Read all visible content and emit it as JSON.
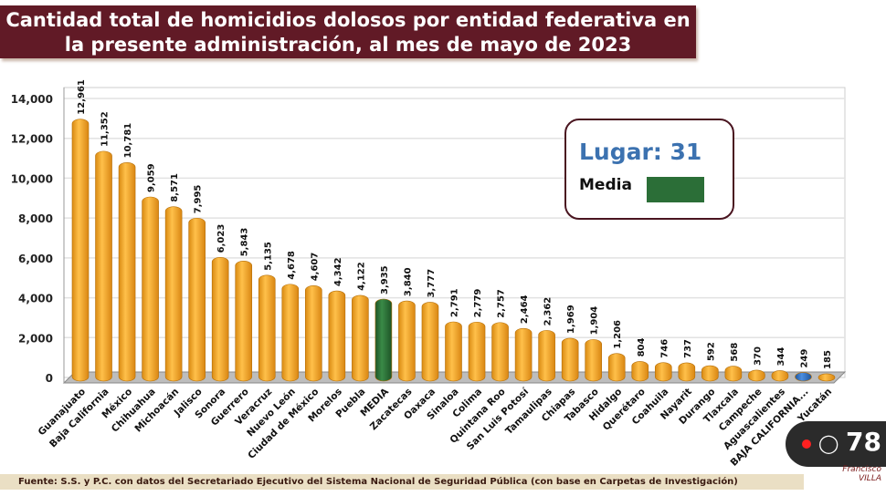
{
  "title": "Cantidad total de homicidios dolosos por entidad federativa en la presente administración, al mes de mayo de 2023",
  "legend": {
    "lugar": "Lugar: 31",
    "media_label": "Media",
    "media_color": "#2b6e37"
  },
  "footer": "Fuente: S.S. y P.C. con datos del Secretariado Ejecutivo del Sistema Nacional de Seguridad Pública (con base en Carpetas de Investigación)",
  "overlay": {
    "viewer_count": "78",
    "icon": "person-icon",
    "live_dot_color": "#ff2020",
    "logo_text": "Francisco VILLA"
  },
  "chart_data": {
    "type": "bar",
    "title": "Cantidad total de homicidios dolosos por entidad federativa en la presente administración, al mes de mayo de 2023",
    "xlabel": "",
    "ylabel": "",
    "ylim": [
      0,
      14000
    ],
    "yticks": [
      "0",
      "2,000",
      "4,000",
      "6,000",
      "8,000",
      "10,000",
      "12,000",
      "14,000"
    ],
    "grid": true,
    "categories": [
      "Guanajuato",
      "Baja California",
      "México",
      "Chihuahua",
      "Michoacán",
      "Jalisco",
      "Sonora",
      "Guerrero",
      "Veracruz",
      "Nuevo León",
      "Ciudad de México",
      "Morelos",
      "Puebla",
      "MEDIA",
      "Zacatecas",
      "Oaxaca",
      "Sinaloa",
      "Colima",
      "Quintana Roo",
      "San Luis Potosí",
      "Tamaulipas",
      "Chiapas",
      "Tabasco",
      "Hidalgo",
      "Querétaro",
      "Coahuila",
      "Nayarit",
      "Durango",
      "Tlaxcala",
      "Campeche",
      "Aguascalientes",
      "BAJA CALIFORNIA...",
      "Yucatán"
    ],
    "values": [
      12961,
      11352,
      10781,
      9059,
      8571,
      7995,
      6023,
      5843,
      5135,
      4678,
      4607,
      4342,
      4122,
      3935,
      3840,
      3777,
      2791,
      2779,
      2757,
      2464,
      2362,
      1969,
      1904,
      1206,
      804,
      746,
      737,
      592,
      568,
      370,
      344,
      249,
      185
    ],
    "value_labels": [
      "12,961",
      "11,352",
      "10,781",
      "9,059",
      "8,571",
      "7,995",
      "6,023",
      "5,843",
      "5,135",
      "4,678",
      "4,607",
      "4,342",
      "4,122",
      "3,935",
      "3,840",
      "3,777",
      "2,791",
      "2,779",
      "2,757",
      "2,464",
      "2,362",
      "1,969",
      "1,904",
      "1,206",
      "804",
      "746",
      "737",
      "592",
      "568",
      "370",
      "344",
      "249",
      "185"
    ],
    "colors": {
      "default": "#f5a623",
      "media": "#2b6e37",
      "highlight": "#2f6fc0"
    },
    "highlight_index": 31,
    "media_index": 13
  }
}
